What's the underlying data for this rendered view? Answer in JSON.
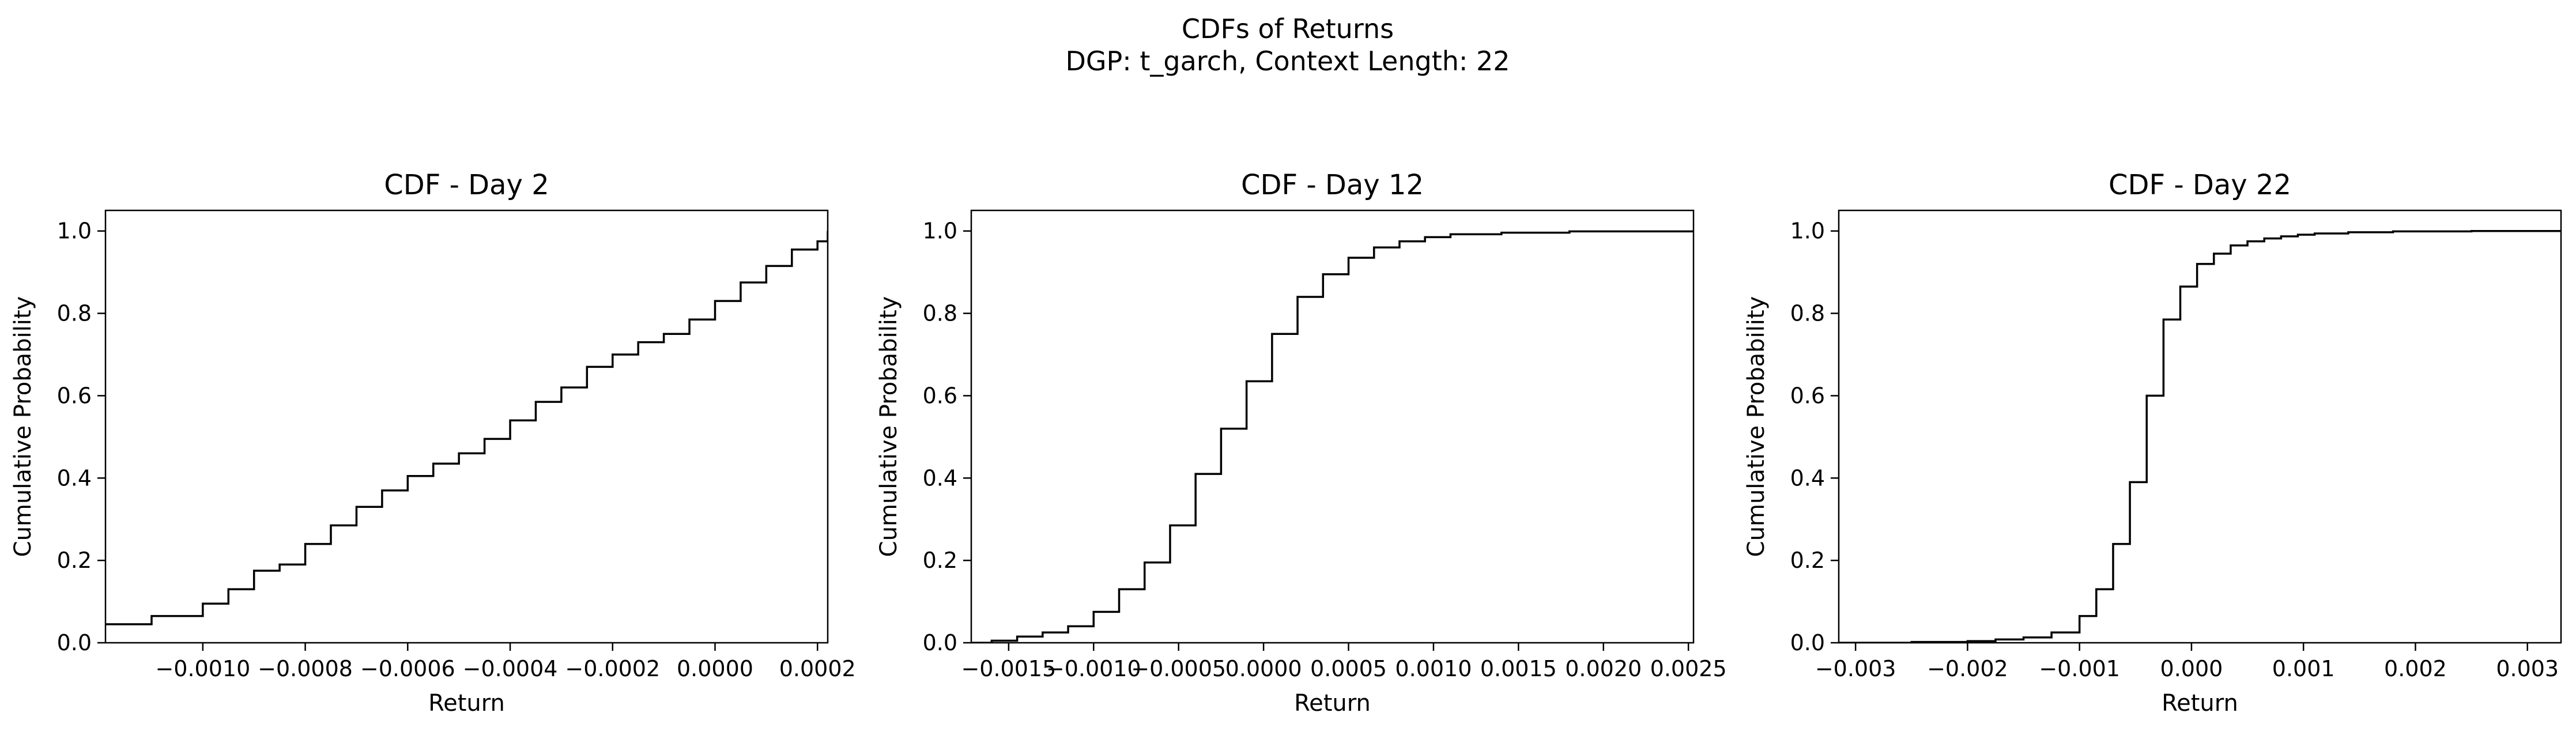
{
  "figure": {
    "title": "CDFs of Returns",
    "subtitle": "DGP: t_garch, Context Length: 22"
  },
  "chart_data": [
    {
      "type": "line",
      "step": true,
      "title": "CDF - Day 2",
      "xlabel": "Return",
      "ylabel": "Cumulative Probability",
      "xlim": [
        -0.00119,
        0.00022
      ],
      "ylim": [
        0.0,
        1.05
      ],
      "xticks": [
        -0.001,
        -0.0008,
        -0.0006,
        -0.0004,
        -0.0002,
        0.0,
        0.0002
      ],
      "xtick_labels": [
        "−0.0010",
        "−0.0008",
        "−0.0006",
        "−0.0004",
        "−0.0002",
        "0.0000",
        "0.0002"
      ],
      "yticks": [
        0.0,
        0.2,
        0.4,
        0.6,
        0.8,
        1.0
      ],
      "ytick_labels": [
        "0.0",
        "0.2",
        "0.4",
        "0.6",
        "0.8",
        "1.0"
      ],
      "x": [
        -0.00119,
        -0.0011,
        -0.001,
        -0.00095,
        -0.0009,
        -0.00085,
        -0.0008,
        -0.00075,
        -0.0007,
        -0.00065,
        -0.0006,
        -0.00055,
        -0.0005,
        -0.00045,
        -0.0004,
        -0.00035,
        -0.0003,
        -0.00025,
        -0.0002,
        -0.00015,
        -0.0001,
        -5e-05,
        0.0,
        5e-05,
        0.0001,
        0.00015,
        0.0002,
        0.00022
      ],
      "y": [
        0.045,
        0.065,
        0.095,
        0.13,
        0.175,
        0.19,
        0.24,
        0.285,
        0.33,
        0.37,
        0.405,
        0.435,
        0.46,
        0.495,
        0.54,
        0.585,
        0.62,
        0.67,
        0.7,
        0.73,
        0.75,
        0.785,
        0.83,
        0.875,
        0.915,
        0.955,
        0.975,
        1.0
      ]
    },
    {
      "type": "line",
      "step": true,
      "title": "CDF - Day 12",
      "xlabel": "Return",
      "ylabel": "Cumulative Probability",
      "xlim": [
        -0.00172,
        0.00253
      ],
      "ylim": [
        0.0,
        1.05
      ],
      "xticks": [
        -0.0015,
        -0.001,
        -0.0005,
        0.0,
        0.0005,
        0.001,
        0.0015,
        0.002,
        0.0025
      ],
      "xtick_labels": [
        "−0.0015",
        "−0.0010",
        "−0.0005",
        "0.0000",
        "0.0005",
        "0.0010",
        "0.0015",
        "0.0020",
        "0.0025"
      ],
      "yticks": [
        0.0,
        0.2,
        0.4,
        0.6,
        0.8,
        1.0
      ],
      "ytick_labels": [
        "0.0",
        "0.2",
        "0.4",
        "0.6",
        "0.8",
        "1.0"
      ],
      "x": [
        -0.00172,
        -0.0016,
        -0.00145,
        -0.0013,
        -0.00115,
        -0.001,
        -0.00085,
        -0.0007,
        -0.00055,
        -0.0004,
        -0.00025,
        -0.0001,
        5e-05,
        0.0002,
        0.00035,
        0.0005,
        0.00065,
        0.0008,
        0.00095,
        0.0011,
        0.0014,
        0.0018,
        0.00253
      ],
      "y": [
        0.0,
        0.005,
        0.015,
        0.025,
        0.04,
        0.075,
        0.13,
        0.195,
        0.285,
        0.41,
        0.52,
        0.635,
        0.75,
        0.84,
        0.895,
        0.935,
        0.96,
        0.975,
        0.985,
        0.992,
        0.996,
        0.999,
        1.0
      ]
    },
    {
      "type": "line",
      "step": true,
      "title": "CDF - Day 22",
      "xlabel": "Return",
      "ylabel": "Cumulative Probability",
      "xlim": [
        -0.00315,
        0.0033
      ],
      "ylim": [
        0.0,
        1.05
      ],
      "xticks": [
        -0.003,
        -0.002,
        -0.001,
        0.0,
        0.001,
        0.002,
        0.003
      ],
      "xtick_labels": [
        "−0.003",
        "−0.002",
        "−0.001",
        "0.000",
        "0.001",
        "0.002",
        "0.003"
      ],
      "yticks": [
        0.0,
        0.2,
        0.4,
        0.6,
        0.8,
        1.0
      ],
      "ytick_labels": [
        "0.0",
        "0.2",
        "0.4",
        "0.6",
        "0.8",
        "1.0"
      ],
      "x": [
        -0.00315,
        -0.0025,
        -0.002,
        -0.00175,
        -0.0015,
        -0.00125,
        -0.001,
        -0.00085,
        -0.0007,
        -0.00055,
        -0.0004,
        -0.00025,
        -0.0001,
        5e-05,
        0.0002,
        0.00035,
        0.0005,
        0.00065,
        0.0008,
        0.00095,
        0.0011,
        0.0014,
        0.0018,
        0.0025,
        0.0033
      ],
      "y": [
        0.0,
        0.002,
        0.004,
        0.008,
        0.013,
        0.025,
        0.065,
        0.13,
        0.24,
        0.39,
        0.6,
        0.785,
        0.865,
        0.92,
        0.945,
        0.965,
        0.975,
        0.982,
        0.987,
        0.991,
        0.994,
        0.997,
        0.999,
        1.0,
        1.0
      ]
    }
  ]
}
